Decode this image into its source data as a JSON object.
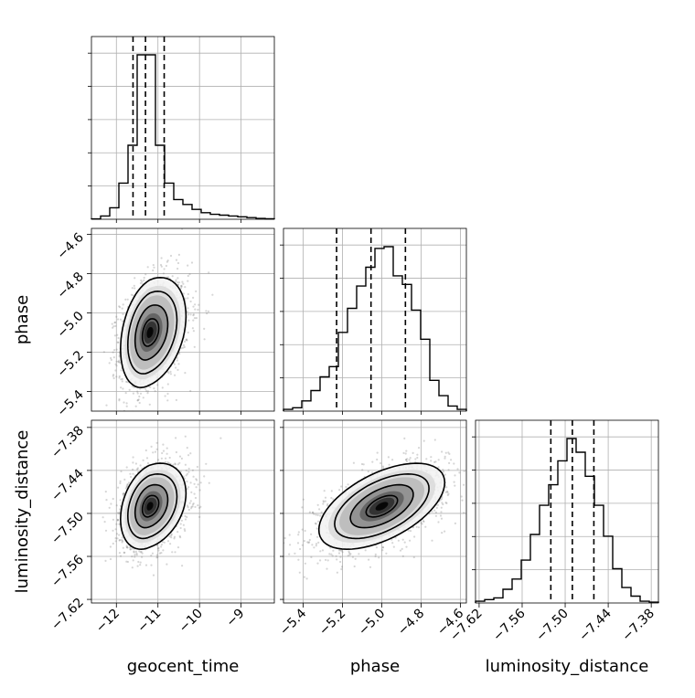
{
  "chart_data": {
    "type": "corner",
    "parameters": [
      {
        "key": "geocent_time",
        "label": "geocent_time",
        "range": [
          -12.6,
          -8.2
        ],
        "ticks": [
          -12,
          -11,
          -10,
          -9
        ],
        "tick_labels": [
          "−12",
          "−11",
          "−10",
          "−9"
        ],
        "median": -11.3,
        "q16": -11.6,
        "q84": -10.85
      },
      {
        "key": "phase",
        "label": "phase",
        "range": [
          -5.5,
          -4.57
        ],
        "ticks": [
          -5.4,
          -5.2,
          -5.0,
          -4.8,
          -4.6
        ],
        "tick_labels": [
          "−5.4",
          "−5.2",
          "−5.0",
          "−4.8",
          "−4.6"
        ],
        "median": -5.055,
        "q16": -5.23,
        "q84": -4.88
      },
      {
        "key": "luminosity_distance",
        "label": "luminosity_distance",
        "range": [
          -7.625,
          -7.37
        ],
        "ticks": [
          -7.62,
          -7.56,
          -7.5,
          -7.44,
          -7.38
        ],
        "tick_labels": [
          "−7.62",
          "−7.56",
          "−7.50",
          "−7.44",
          "−7.38"
        ],
        "median": -7.49,
        "q16": -7.52,
        "q84": -7.46
      }
    ],
    "histograms": {
      "geocent_time": {
        "edges_start": -12.6,
        "bin_width": 0.22,
        "counts": [
          0.2,
          2,
          7,
          22,
          45,
          100,
          100,
          45,
          22,
          12,
          9,
          6,
          4,
          3,
          2.5,
          2,
          1.5,
          1,
          0.5,
          0.3
        ]
      },
      "phase": {
        "edges_start": -5.5,
        "bin_width": 0.0465,
        "counts": [
          1,
          2,
          6,
          12,
          20,
          26,
          46,
          60,
          73,
          84,
          95,
          96,
          79,
          74,
          59,
          42,
          18,
          9,
          3,
          1
        ]
      },
      "luminosity_distance": {
        "edges_start": -7.625,
        "bin_width": 0.01275,
        "counts": [
          1,
          2,
          3,
          8,
          14,
          25,
          40,
          57,
          69,
          83,
          96,
          88,
          74,
          57,
          39,
          20,
          9,
          4,
          1,
          0.5
        ]
      }
    },
    "joint": {
      "phase_vs_geocent_time": {
        "center": [
          -11.2,
          -5.1
        ],
        "sd": [
          0.35,
          0.14
        ],
        "corr": 0.3
      },
      "luminosity_distance_vs_geocent_time": {
        "center": [
          -11.2,
          -7.49
        ],
        "sd": [
          0.35,
          0.03
        ],
        "corr": 0.3
      },
      "luminosity_distance_vs_phase": {
        "center": [
          -5.0,
          -7.49
        ],
        "sd": [
          0.16,
          0.03
        ],
        "corr": 0.55
      }
    },
    "grid": true
  }
}
